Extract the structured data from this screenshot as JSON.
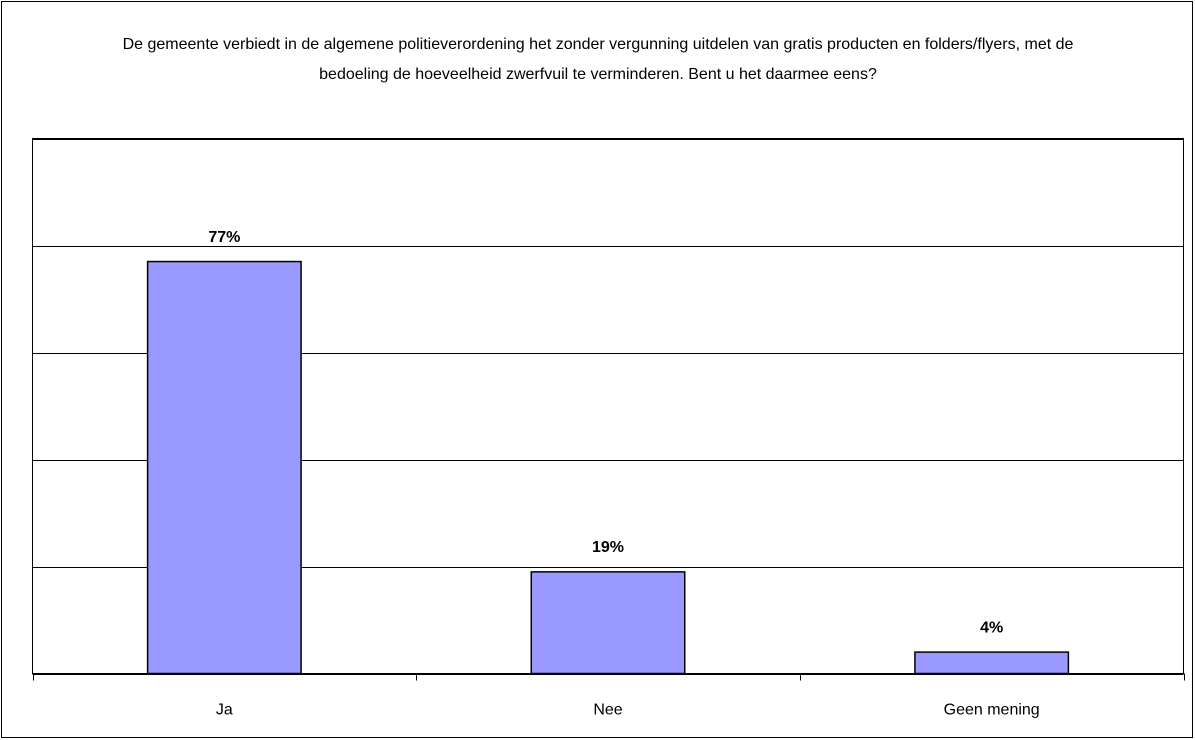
{
  "chart_data": {
    "type": "bar",
    "title": "De gemeente verbiedt in de algemene politieverordening het zonder vergunning uitdelen van gratis producten en folders/flyers, met de bedoeling de hoeveelheid zwerfvuil te verminderen. Bent u het daarmee eens?",
    "categories": [
      "Ja",
      "Nee",
      "Geen mening"
    ],
    "values": [
      77,
      19,
      4
    ],
    "value_labels": [
      "77%",
      "19%",
      "4%"
    ],
    "color": "#9999ff",
    "ylim": [
      0,
      100
    ],
    "yticks": [
      0,
      20,
      40,
      60,
      80,
      100
    ],
    "grid": true
  }
}
